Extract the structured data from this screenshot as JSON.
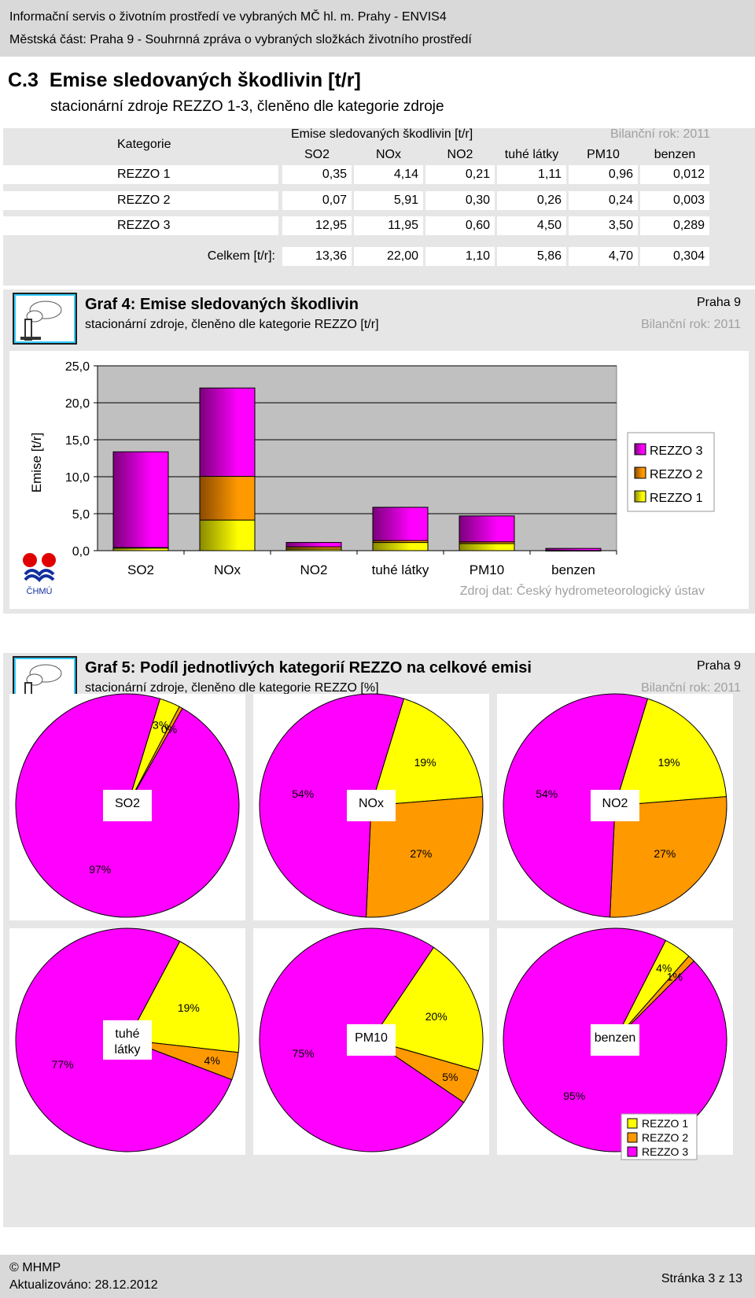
{
  "header": {
    "line1": "Informační servis o životním prostředí ve vybraných MČ hl. m. Prahy - ENVIS4",
    "line2": "Městská část: Praha 9 - Souhrnná zpráva o vybraných složkách životního prostředí"
  },
  "section": {
    "number": "C.3",
    "title": "Emise sledovaných škodlivin [t/r]",
    "subtitle": "stacionární zdroje REZZO 1-3, členěno dle kategorie zdroje"
  },
  "table": {
    "kategorie_label": "Kategorie",
    "group_label": "Emise sledovaných škodlivin [t/r]",
    "bilancni_rok": "Bilanční rok: 2011",
    "columns": [
      "SO2",
      "NOx",
      "NO2",
      "tuhé látky",
      "PM10",
      "benzen"
    ],
    "rows": [
      {
        "name": "REZZO 1",
        "values": [
          "0,35",
          "4,14",
          "0,21",
          "1,11",
          "0,96",
          "0,012"
        ]
      },
      {
        "name": "REZZO 2",
        "values": [
          "0,07",
          "5,91",
          "0,30",
          "0,26",
          "0,24",
          "0,003"
        ]
      },
      {
        "name": "REZZO 3",
        "values": [
          "12,95",
          "11,95",
          "0,60",
          "4,50",
          "3,50",
          "0,289"
        ]
      }
    ],
    "total_label": "Celkem [t/r]:",
    "totals": [
      "13,36",
      "22,00",
      "1,10",
      "5,86",
      "4,70",
      "0,304"
    ]
  },
  "graf4": {
    "title": "Graf 4: Emise sledovaných škodlivin",
    "subtitle": "stacionární zdroje, členěno dle kategorie REZZO [t/r]",
    "location": "Praha 9",
    "bilancni_rok": "Bilanční rok: 2011",
    "source": "Zdroj dat: Český hydrometeorologický ústav",
    "logo_text": "ČHMÚ"
  },
  "graf5": {
    "title": "Graf 5: Podíl jednotlivých kategorií REZZO na celkové emisi",
    "subtitle": "stacionární zdroje, členěno dle kategorie REZZO [%]",
    "location": "Praha 9",
    "bilancni_rok": "Bilanční rok: 2011"
  },
  "colors": {
    "rezzo1": "#ffff00",
    "rezzo2": "#ff9900",
    "rezzo3": "#ff00ff"
  },
  "chart_data": [
    {
      "type": "bar",
      "stacked": true,
      "categories": [
        "SO2",
        "NOx",
        "NO2",
        "tuhé látky",
        "PM10",
        "benzen"
      ],
      "series": [
        {
          "name": "REZZO 1",
          "values": [
            0.35,
            4.14,
            0.21,
            1.11,
            0.96,
            0.012
          ]
        },
        {
          "name": "REZZO 2",
          "values": [
            0.07,
            5.91,
            0.3,
            0.26,
            0.24,
            0.003
          ]
        },
        {
          "name": "REZZO 3",
          "values": [
            12.95,
            11.95,
            0.6,
            4.5,
            3.5,
            0.289
          ]
        }
      ],
      "ylabel": "Emise [t/r]",
      "ylim": [
        0,
        25
      ],
      "yticks": [
        "0,0",
        "5,0",
        "10,0",
        "15,0",
        "20,0",
        "25,0"
      ],
      "legend": [
        "REZZO 3",
        "REZZO 2",
        "REZZO 1"
      ],
      "legend_position": "right",
      "grid": true
    },
    {
      "type": "pie",
      "label": "SO2",
      "slices": [
        {
          "name": "REZZO 3",
          "value": 97,
          "label": "97%"
        },
        {
          "name": "REZZO 1",
          "value": 3,
          "label": "3%"
        },
        {
          "name": "REZZO 2",
          "value": 0.5,
          "label": "0%"
        }
      ]
    },
    {
      "type": "pie",
      "label": "NOx",
      "slices": [
        {
          "name": "REZZO 3",
          "value": 54,
          "label": "54%"
        },
        {
          "name": "REZZO 1",
          "value": 19,
          "label": "19%"
        },
        {
          "name": "REZZO 2",
          "value": 27,
          "label": "27%"
        }
      ]
    },
    {
      "type": "pie",
      "label": "NO2",
      "slices": [
        {
          "name": "REZZO 3",
          "value": 54,
          "label": "54%"
        },
        {
          "name": "REZZO 1",
          "value": 19,
          "label": "19%"
        },
        {
          "name": "REZZO 2",
          "value": 27,
          "label": "27%"
        }
      ]
    },
    {
      "type": "pie",
      "label": "tuhé látky",
      "slices": [
        {
          "name": "REZZO 3",
          "value": 77,
          "label": "77%"
        },
        {
          "name": "REZZO 1",
          "value": 19,
          "label": "19%"
        },
        {
          "name": "REZZO 2",
          "value": 4,
          "label": "4%"
        }
      ]
    },
    {
      "type": "pie",
      "label": "PM10",
      "slices": [
        {
          "name": "REZZO 3",
          "value": 75,
          "label": "75%"
        },
        {
          "name": "REZZO 1",
          "value": 20,
          "label": "20%"
        },
        {
          "name": "REZZO 2",
          "value": 5,
          "label": "5%"
        }
      ]
    },
    {
      "type": "pie",
      "label": "benzen",
      "slices": [
        {
          "name": "REZZO 3",
          "value": 95,
          "label": "95%"
        },
        {
          "name": "REZZO 1",
          "value": 4,
          "label": "4%"
        },
        {
          "name": "REZZO 2",
          "value": 1,
          "label": "1%"
        }
      ],
      "legend": [
        "REZZO 1",
        "REZZO 2",
        "REZZO 3"
      ]
    }
  ],
  "footer": {
    "copyright": "© MHMP",
    "updated": "Aktualizováno: 28.12.2012",
    "page": "Stránka 3 z 13"
  }
}
